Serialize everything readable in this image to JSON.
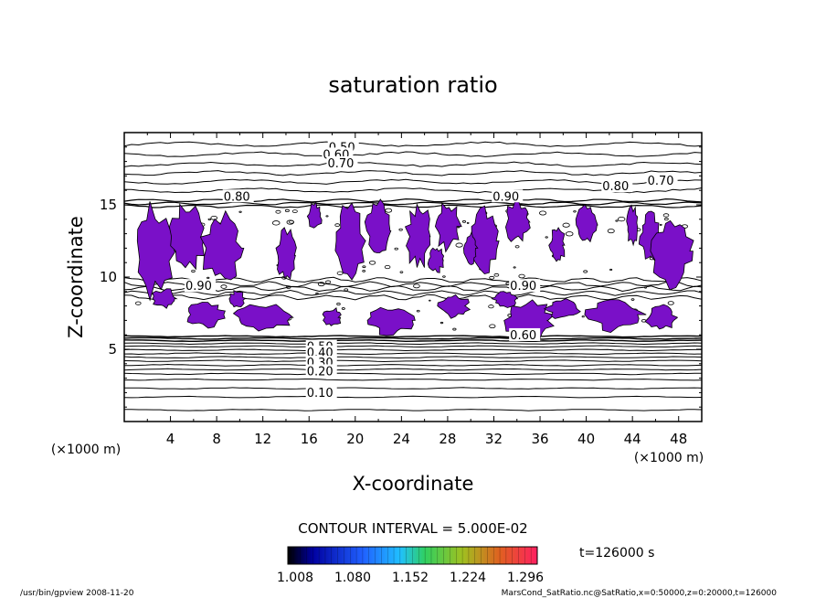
{
  "chart_data": {
    "type": "contour",
    "title": "saturation ratio",
    "xlabel": "X-coordinate",
    "ylabel": "Z-coordinate",
    "x_unit": "(×1000 m)",
    "y_unit": "(×1000 m)",
    "xlim": [
      0,
      50
    ],
    "ylim": [
      0,
      20
    ],
    "x_ticks": [
      4,
      8,
      12,
      16,
      20,
      24,
      28,
      32,
      36,
      40,
      44,
      48
    ],
    "y_ticks": [
      5,
      10,
      15
    ],
    "contour_interval_label": "CONTOUR INTERVAL = 5.000E-02",
    "time_label": "t=126000 s",
    "colorbar_ticks": [
      "1.008",
      "1.080",
      "1.152",
      "1.224",
      "1.296"
    ],
    "contour_labels": [
      {
        "text": "0.50",
        "x": 17.7,
        "z": 18.7
      },
      {
        "text": "0.60",
        "x": 17.2,
        "z": 18.2
      },
      {
        "text": "0.70",
        "x": 17.6,
        "z": 17.6
      },
      {
        "text": "0.80",
        "x": 8.6,
        "z": 15.3
      },
      {
        "text": "0.90",
        "x": 31.9,
        "z": 15.3
      },
      {
        "text": "0.80",
        "x": 41.4,
        "z": 16.0
      },
      {
        "text": "0.70",
        "x": 45.3,
        "z": 16.4
      },
      {
        "text": "0.90",
        "x": 5.3,
        "z": 9.1
      },
      {
        "text": "0.90",
        "x": 33.4,
        "z": 9.1
      },
      {
        "text": "0.60",
        "x": 33.4,
        "z": 5.7
      },
      {
        "text": "0.50",
        "x": 15.8,
        "z": 4.9
      },
      {
        "text": "0.40",
        "x": 15.8,
        "z": 4.5
      },
      {
        "text": "0.30",
        "x": 15.8,
        "z": 3.8
      },
      {
        "text": "0.20",
        "x": 15.8,
        "z": 3.2
      },
      {
        "text": "0.10",
        "x": 15.8,
        "z": 1.7
      }
    ]
  },
  "footer": {
    "left": "/usr/bin/gpview   2008-11-20",
    "right": "MarsCond_SatRatio.nc@SatRatio,x=0:50000,z=0:20000,t=126000"
  }
}
